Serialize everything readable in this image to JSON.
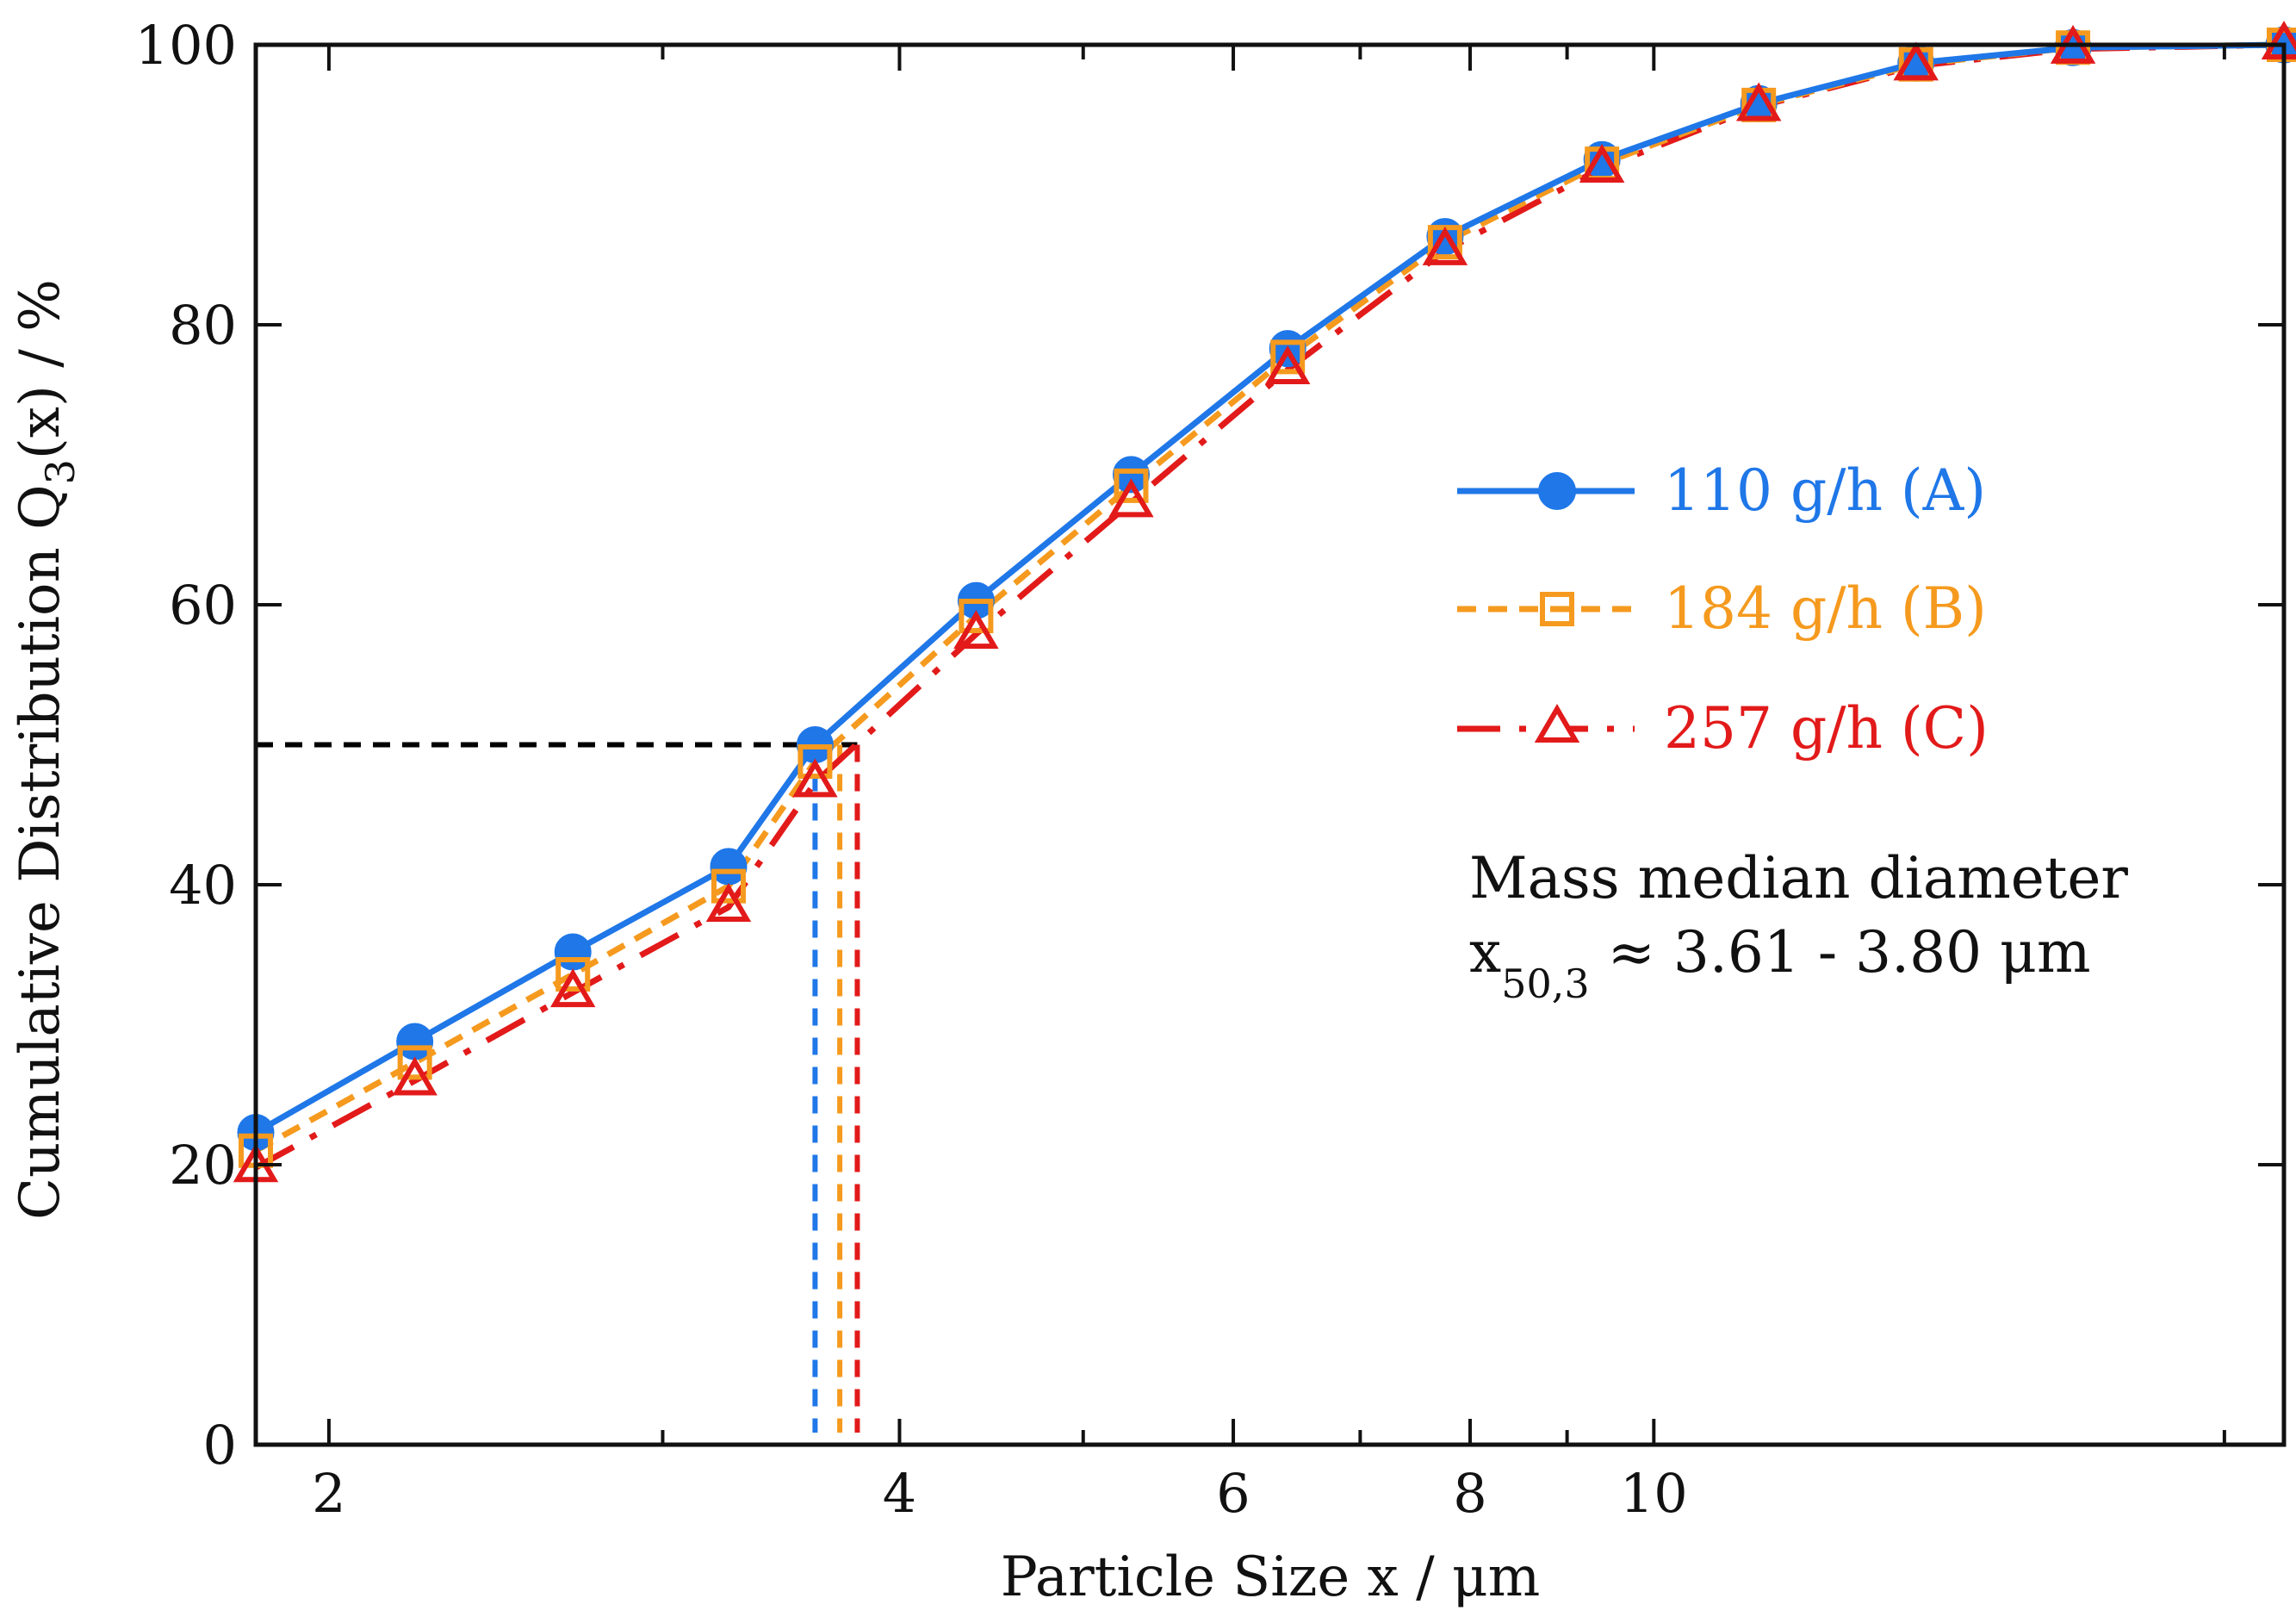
{
  "chart_data": {
    "type": "line",
    "x_scale": "log",
    "xlabel": "Particle Size x / μm",
    "ylabel_prefix": "Cumulative Distribution Q",
    "ylabel_subscript": "3",
    "ylabel_suffix": "(x) / %",
    "xlim": [
      1.83,
      21.5
    ],
    "ylim": [
      0,
      100
    ],
    "x_ticks": [
      2,
      4,
      6,
      8,
      10
    ],
    "x_ticks_minor": [
      3,
      5,
      7,
      9,
      20
    ],
    "x_tick_labels": [
      "2",
      "4",
      "6",
      "8",
      "10"
    ],
    "y_ticks": [
      0,
      20,
      40,
      60,
      80,
      100
    ],
    "y_tick_labels": [
      "0",
      "20",
      "40",
      "60",
      "80",
      "100"
    ],
    "grid": false,
    "legend_position": "right-middle",
    "x": [
      1.83,
      2.22,
      2.69,
      3.25,
      3.61,
      4.39,
      5.3,
      6.41,
      7.76,
      9.39,
      11.36,
      13.75,
      16.64,
      21.5
    ],
    "series": [
      {
        "name": "110 g/h (A)",
        "color": "#1f77e8",
        "marker": "circle",
        "line_style": "solid",
        "values": [
          22.3,
          28.8,
          35.2,
          41.3,
          50.0,
          60.3,
          69.3,
          78.3,
          86.3,
          91.8,
          95.8,
          98.7,
          99.8,
          100.0
        ]
      },
      {
        "name": "184 g/h (B)",
        "color": "#f59a1e",
        "marker": "square",
        "line_style": "dashed",
        "values": [
          21.0,
          27.3,
          33.6,
          39.9,
          48.8,
          59.2,
          68.5,
          77.7,
          85.9,
          91.5,
          95.7,
          98.6,
          99.8,
          100.0
        ]
      },
      {
        "name": "257 g/h (C)",
        "color": "#e21a1a",
        "marker": "triangle",
        "line_style": "long-dashed",
        "values": [
          19.8,
          26.0,
          32.3,
          38.4,
          47.3,
          57.9,
          67.3,
          76.8,
          85.3,
          91.2,
          95.6,
          98.5,
          99.7,
          100.0
        ]
      }
    ],
    "median_line": {
      "y": 50,
      "color": "#000000",
      "drops": [
        {
          "x": 3.61,
          "color": "#1f77e8"
        },
        {
          "x": 3.72,
          "color": "#f59a1e"
        },
        {
          "x": 3.8,
          "color": "#e21a1a"
        }
      ]
    },
    "annotation": {
      "line1": "Mass median diameter",
      "line2_prefix": "x",
      "line2_subscript": "50,3",
      "line2_suffix": " ≈ 3.61 - 3.80 μm"
    }
  }
}
